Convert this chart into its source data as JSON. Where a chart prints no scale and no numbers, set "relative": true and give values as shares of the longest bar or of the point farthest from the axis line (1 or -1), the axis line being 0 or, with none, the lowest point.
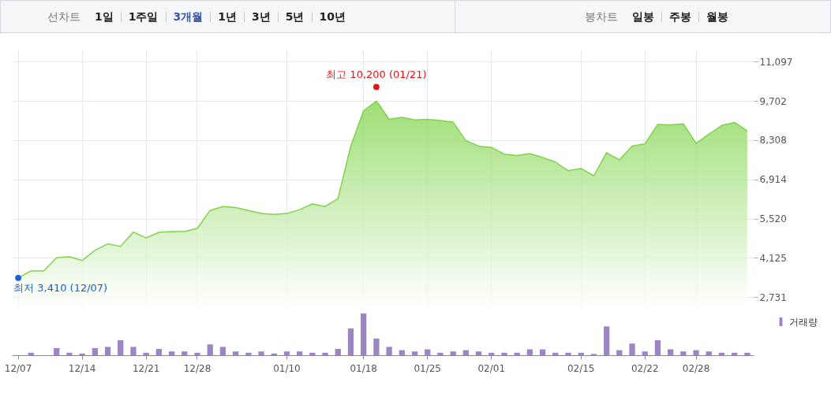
{
  "chart_data": [
    {
      "type": "other",
      "annotations": [
        "선차트",
        "1일",
        "1주일",
        "3개월",
        "1년",
        "3년",
        "5년",
        "10년",
        "봉차트",
        "일봉",
        "주봉",
        "월봉"
      ]
    },
    {
      "type": "area",
      "categories": [
        null,
        null,
        null,
        null,
        null,
        null,
        null,
        null,
        null,
        null,
        null,
        null,
        null,
        null,
        null,
        null,
        null,
        null,
        null,
        null,
        null,
        null,
        null,
        null,
        null,
        null,
        null,
        null,
        null,
        null,
        null,
        null,
        null,
        null,
        null,
        null,
        null,
        null,
        null,
        null,
        null,
        null,
        null,
        null,
        null,
        null,
        null,
        null,
        null,
        null,
        null,
        null,
        null,
        null,
        null,
        null,
        null,
        null
      ],
      "series": [
        {
          "color": "#7ed348",
          "values": [
            3410,
            3660,
            3660,
            4130,
            4160,
            4030,
            4390,
            4620,
            4530,
            5040,
            4830,
            5030,
            5060,
            5060,
            5170,
            5810,
            5950,
            5910,
            5810,
            5700,
            5670,
            5700,
            5840,
            6040,
            5950,
            6230,
            8100,
            9350,
            9700,
            9050,
            9120,
            9030,
            9050,
            9010,
            8950,
            8290,
            8100,
            8050,
            7810,
            7760,
            7830,
            7690,
            7530,
            7220,
            7300,
            7040,
            7860,
            7610,
            8100,
            8180,
            8870,
            8850,
            8890,
            8190,
            8520,
            8830,
            8940,
            8640
          ]
        }
      ],
      "ylim": [
        2370,
        11500
      ],
      "yticks": [
        {
          "value": 2731,
          "label": "2,731"
        },
        {
          "value": 4125,
          "label": "4,125"
        },
        {
          "value": 5520,
          "label": "5,520"
        },
        {
          "value": 6914,
          "label": "6,914"
        },
        {
          "value": 8308,
          "label": "8,308"
        },
        {
          "value": 9702,
          "label": "9,702"
        },
        {
          "value": 11097,
          "label": "11,097"
        }
      ],
      "grid": true,
      "tick_labels": "y",
      "marker": "none",
      "annotations": [
        {
          "text": "최고 10,200 (01/21)",
          "y": 10200
        },
        "최저 3,410 (12/07)"
      ]
    },
    {
      "type": "bar",
      "relative": true,
      "categories": [
        "12/07",
        null,
        null,
        null,
        null,
        "12/14",
        null,
        null,
        null,
        null,
        "12/21",
        null,
        null,
        null,
        "12/28",
        null,
        null,
        null,
        null,
        null,
        null,
        "01/10",
        null,
        null,
        null,
        null,
        null,
        "01/18",
        null,
        null,
        null,
        null,
        "01/25",
        null,
        null,
        null,
        null,
        "02/01",
        null,
        null,
        null,
        null,
        null,
        null,
        "02/15",
        null,
        null,
        null,
        null,
        "02/22",
        null,
        null,
        null,
        "02/28",
        null,
        null,
        null,
        null
      ],
      "series": [
        {
          "name": "거래량",
          "color": "#9b85c4",
          "values": [
            null,
            0.06,
            null,
            0.17,
            0.06,
            0.04,
            0.17,
            0.2,
            0.36,
            0.2,
            0.06,
            0.15,
            0.09,
            0.09,
            0.06,
            0.26,
            0.2,
            0.09,
            0.06,
            0.09,
            0.04,
            0.09,
            0.09,
            0.06,
            0.06,
            0.15,
            0.64,
            1,
            0.4,
            0.2,
            0.12,
            0.09,
            0.14,
            0.06,
            0.09,
            0.12,
            0.09,
            0.06,
            0.06,
            0.06,
            0.14,
            0.14,
            0.06,
            0.06,
            0.06,
            0.03,
            0.69,
            0.12,
            0.28,
            0.09,
            0.36,
            0.14,
            0.09,
            0.12,
            0.09,
            0.06,
            0.06,
            0.06
          ]
        }
      ],
      "legend": "top right",
      "tick_labels": "x"
    }
  ]
}
